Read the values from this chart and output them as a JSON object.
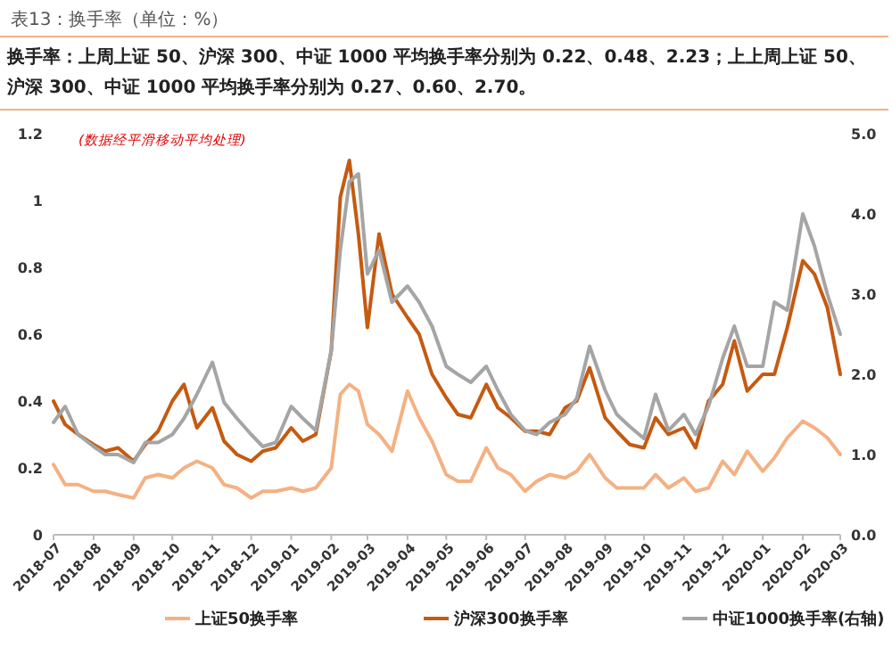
{
  "chart_data": {
    "type": "line",
    "title": "表13：换手率（单位：%）",
    "subtitle": "换手率：上周上证 50、沪深 300、中证 1000 平均换手率分别为 0.22、0.48、2.23；上上周上证 50、沪深 300、中证 1000 平均换手率分别为 0.27、0.60、2.70。",
    "annotations": [
      "(数据经平滑移动平均处理)"
    ],
    "x": [
      "2018-07-01",
      "2018-07-10",
      "2018-07-20",
      "2018-08-01",
      "2018-08-10",
      "2018-08-20",
      "2018-09-01",
      "2018-09-10",
      "2018-09-20",
      "2018-10-01",
      "2018-10-10",
      "2018-10-20",
      "2018-11-01",
      "2018-11-10",
      "2018-11-20",
      "2018-12-01",
      "2018-12-10",
      "2018-12-20",
      "2019-01-01",
      "2019-01-10",
      "2019-01-20",
      "2019-02-01",
      "2019-02-08",
      "2019-02-15",
      "2019-02-22",
      "2019-03-01",
      "2019-03-10",
      "2019-03-20",
      "2019-04-01",
      "2019-04-10",
      "2019-04-20",
      "2019-05-01",
      "2019-05-10",
      "2019-05-20",
      "2019-06-01",
      "2019-06-10",
      "2019-06-20",
      "2019-07-01",
      "2019-07-10",
      "2019-07-20",
      "2019-08-01",
      "2019-08-10",
      "2019-08-20",
      "2019-09-01",
      "2019-09-10",
      "2019-09-20",
      "2019-10-01",
      "2019-10-10",
      "2019-10-20",
      "2019-11-01",
      "2019-11-10",
      "2019-11-20",
      "2019-12-01",
      "2019-12-10",
      "2019-12-20",
      "2020-01-01",
      "2020-01-10",
      "2020-01-20",
      "2020-02-01",
      "2020-02-10",
      "2020-02-20",
      "2020-03-01"
    ],
    "series": [
      {
        "name": "上证50换手率",
        "color": "#f4b183",
        "values": [
          0.21,
          0.15,
          0.15,
          0.13,
          0.13,
          0.12,
          0.11,
          0.17,
          0.18,
          0.17,
          0.2,
          0.22,
          0.2,
          0.15,
          0.14,
          0.11,
          0.13,
          0.13,
          0.14,
          0.13,
          0.14,
          0.2,
          0.42,
          0.45,
          0.43,
          0.33,
          0.3,
          0.25,
          0.43,
          0.35,
          0.28,
          0.18,
          0.16,
          0.16,
          0.26,
          0.2,
          0.18,
          0.13,
          0.16,
          0.18,
          0.17,
          0.19,
          0.24,
          0.17,
          0.14,
          0.14,
          0.14,
          0.18,
          0.14,
          0.17,
          0.13,
          0.14,
          0.22,
          0.18,
          0.25,
          0.19,
          0.23,
          0.29,
          0.34,
          0.32,
          0.29,
          0.24
        ]
      },
      {
        "name": "沪深300换手率",
        "color": "#c55a11",
        "values": [
          0.4,
          0.33,
          0.3,
          0.27,
          0.25,
          0.26,
          0.22,
          0.27,
          0.31,
          0.4,
          0.45,
          0.32,
          0.38,
          0.28,
          0.24,
          0.22,
          0.25,
          0.26,
          0.32,
          0.28,
          0.3,
          0.55,
          1.01,
          1.12,
          0.9,
          0.62,
          0.9,
          0.72,
          0.65,
          0.6,
          0.48,
          0.41,
          0.36,
          0.35,
          0.45,
          0.38,
          0.35,
          0.31,
          0.31,
          0.3,
          0.38,
          0.4,
          0.5,
          0.35,
          0.31,
          0.27,
          0.26,
          0.35,
          0.3,
          0.32,
          0.26,
          0.4,
          0.45,
          0.58,
          0.43,
          0.48,
          0.48,
          0.62,
          0.82,
          0.78,
          0.68,
          0.48
        ]
      },
      {
        "name": "中证1000换手率(右轴)",
        "color": "#a5a5a5",
        "axis": "y2",
        "values": [
          1.4,
          1.6,
          1.25,
          1.1,
          1.0,
          1.0,
          0.9,
          1.15,
          1.15,
          1.25,
          1.45,
          1.75,
          2.15,
          1.65,
          1.45,
          1.25,
          1.1,
          1.15,
          1.6,
          1.45,
          1.3,
          2.3,
          3.55,
          4.4,
          4.5,
          3.25,
          3.55,
          2.9,
          3.1,
          2.9,
          2.6,
          2.1,
          2.0,
          1.9,
          2.1,
          1.8,
          1.5,
          1.3,
          1.25,
          1.4,
          1.5,
          1.7,
          2.35,
          1.8,
          1.5,
          1.35,
          1.2,
          1.75,
          1.3,
          1.5,
          1.25,
          1.6,
          2.2,
          2.6,
          2.1,
          2.1,
          2.9,
          2.8,
          4.0,
          3.6,
          3.0,
          2.5
        ]
      }
    ],
    "xlim": [
      "2018-07-01",
      "2020-03-01"
    ],
    "xticks": [
      "2018-07",
      "2018-08",
      "2018-09",
      "2018-10",
      "2018-11",
      "2018-12",
      "2019-01",
      "2019-02",
      "2019-03",
      "2019-04",
      "2019-05",
      "2019-06",
      "2019-07",
      "2019-08",
      "2019-09",
      "2019-10",
      "2019-11",
      "2019-12",
      "2020-01",
      "2020-02",
      "2020-03"
    ],
    "ylim": [
      0,
      1.2
    ],
    "yticks": [
      0,
      0.2,
      0.4,
      0.6,
      0.8,
      1,
      1.2
    ],
    "y2lim": [
      0,
      5
    ],
    "y2ticks": [
      {
        "value": 0,
        "label": "0.0"
      },
      {
        "value": 1,
        "label": "1.0"
      },
      {
        "value": 2,
        "label": "2.0"
      },
      {
        "value": 3,
        "label": "3.0"
      },
      {
        "value": 4,
        "label": "4.0"
      },
      {
        "value": 5,
        "label": "5.0"
      }
    ],
    "grid": false,
    "legend": "bottom",
    "marker": "none",
    "line_style": "solid"
  }
}
